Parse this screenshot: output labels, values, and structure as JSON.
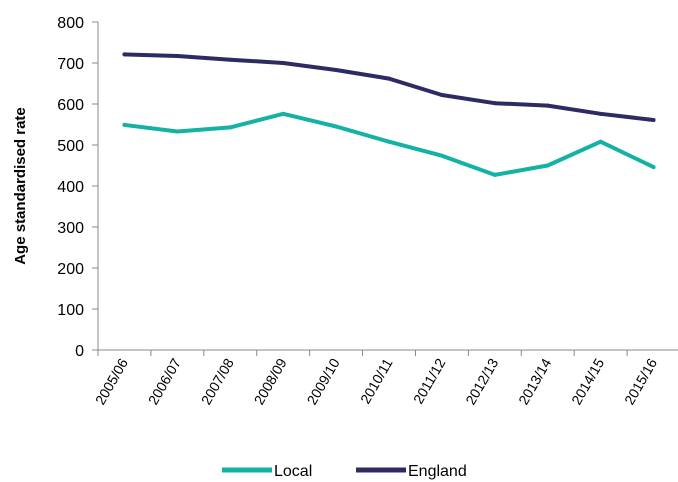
{
  "chart_data": {
    "type": "line",
    "title": "",
    "xlabel": "",
    "ylabel": "Age standardised rate",
    "ylim": [
      0,
      800
    ],
    "yticks": [
      0,
      100,
      200,
      300,
      400,
      500,
      600,
      700,
      800
    ],
    "categories": [
      "2005/06",
      "2006/07",
      "2007/08",
      "2008/09",
      "2009/10",
      "2010/11",
      "2011/12",
      "2012/13",
      "2013/14",
      "2014/15",
      "2015/16"
    ],
    "series": [
      {
        "name": "Local",
        "color": "#14b2a4",
        "values": [
          549,
          533,
          543,
          576,
          545,
          508,
          474,
          427,
          450,
          508,
          446
        ]
      },
      {
        "name": "England",
        "color": "#2e2b63",
        "values": [
          721,
          717,
          708,
          700,
          683,
          662,
          622,
          602,
          596,
          576,
          561
        ]
      }
    ],
    "grid": false,
    "legend_position": "bottom"
  }
}
